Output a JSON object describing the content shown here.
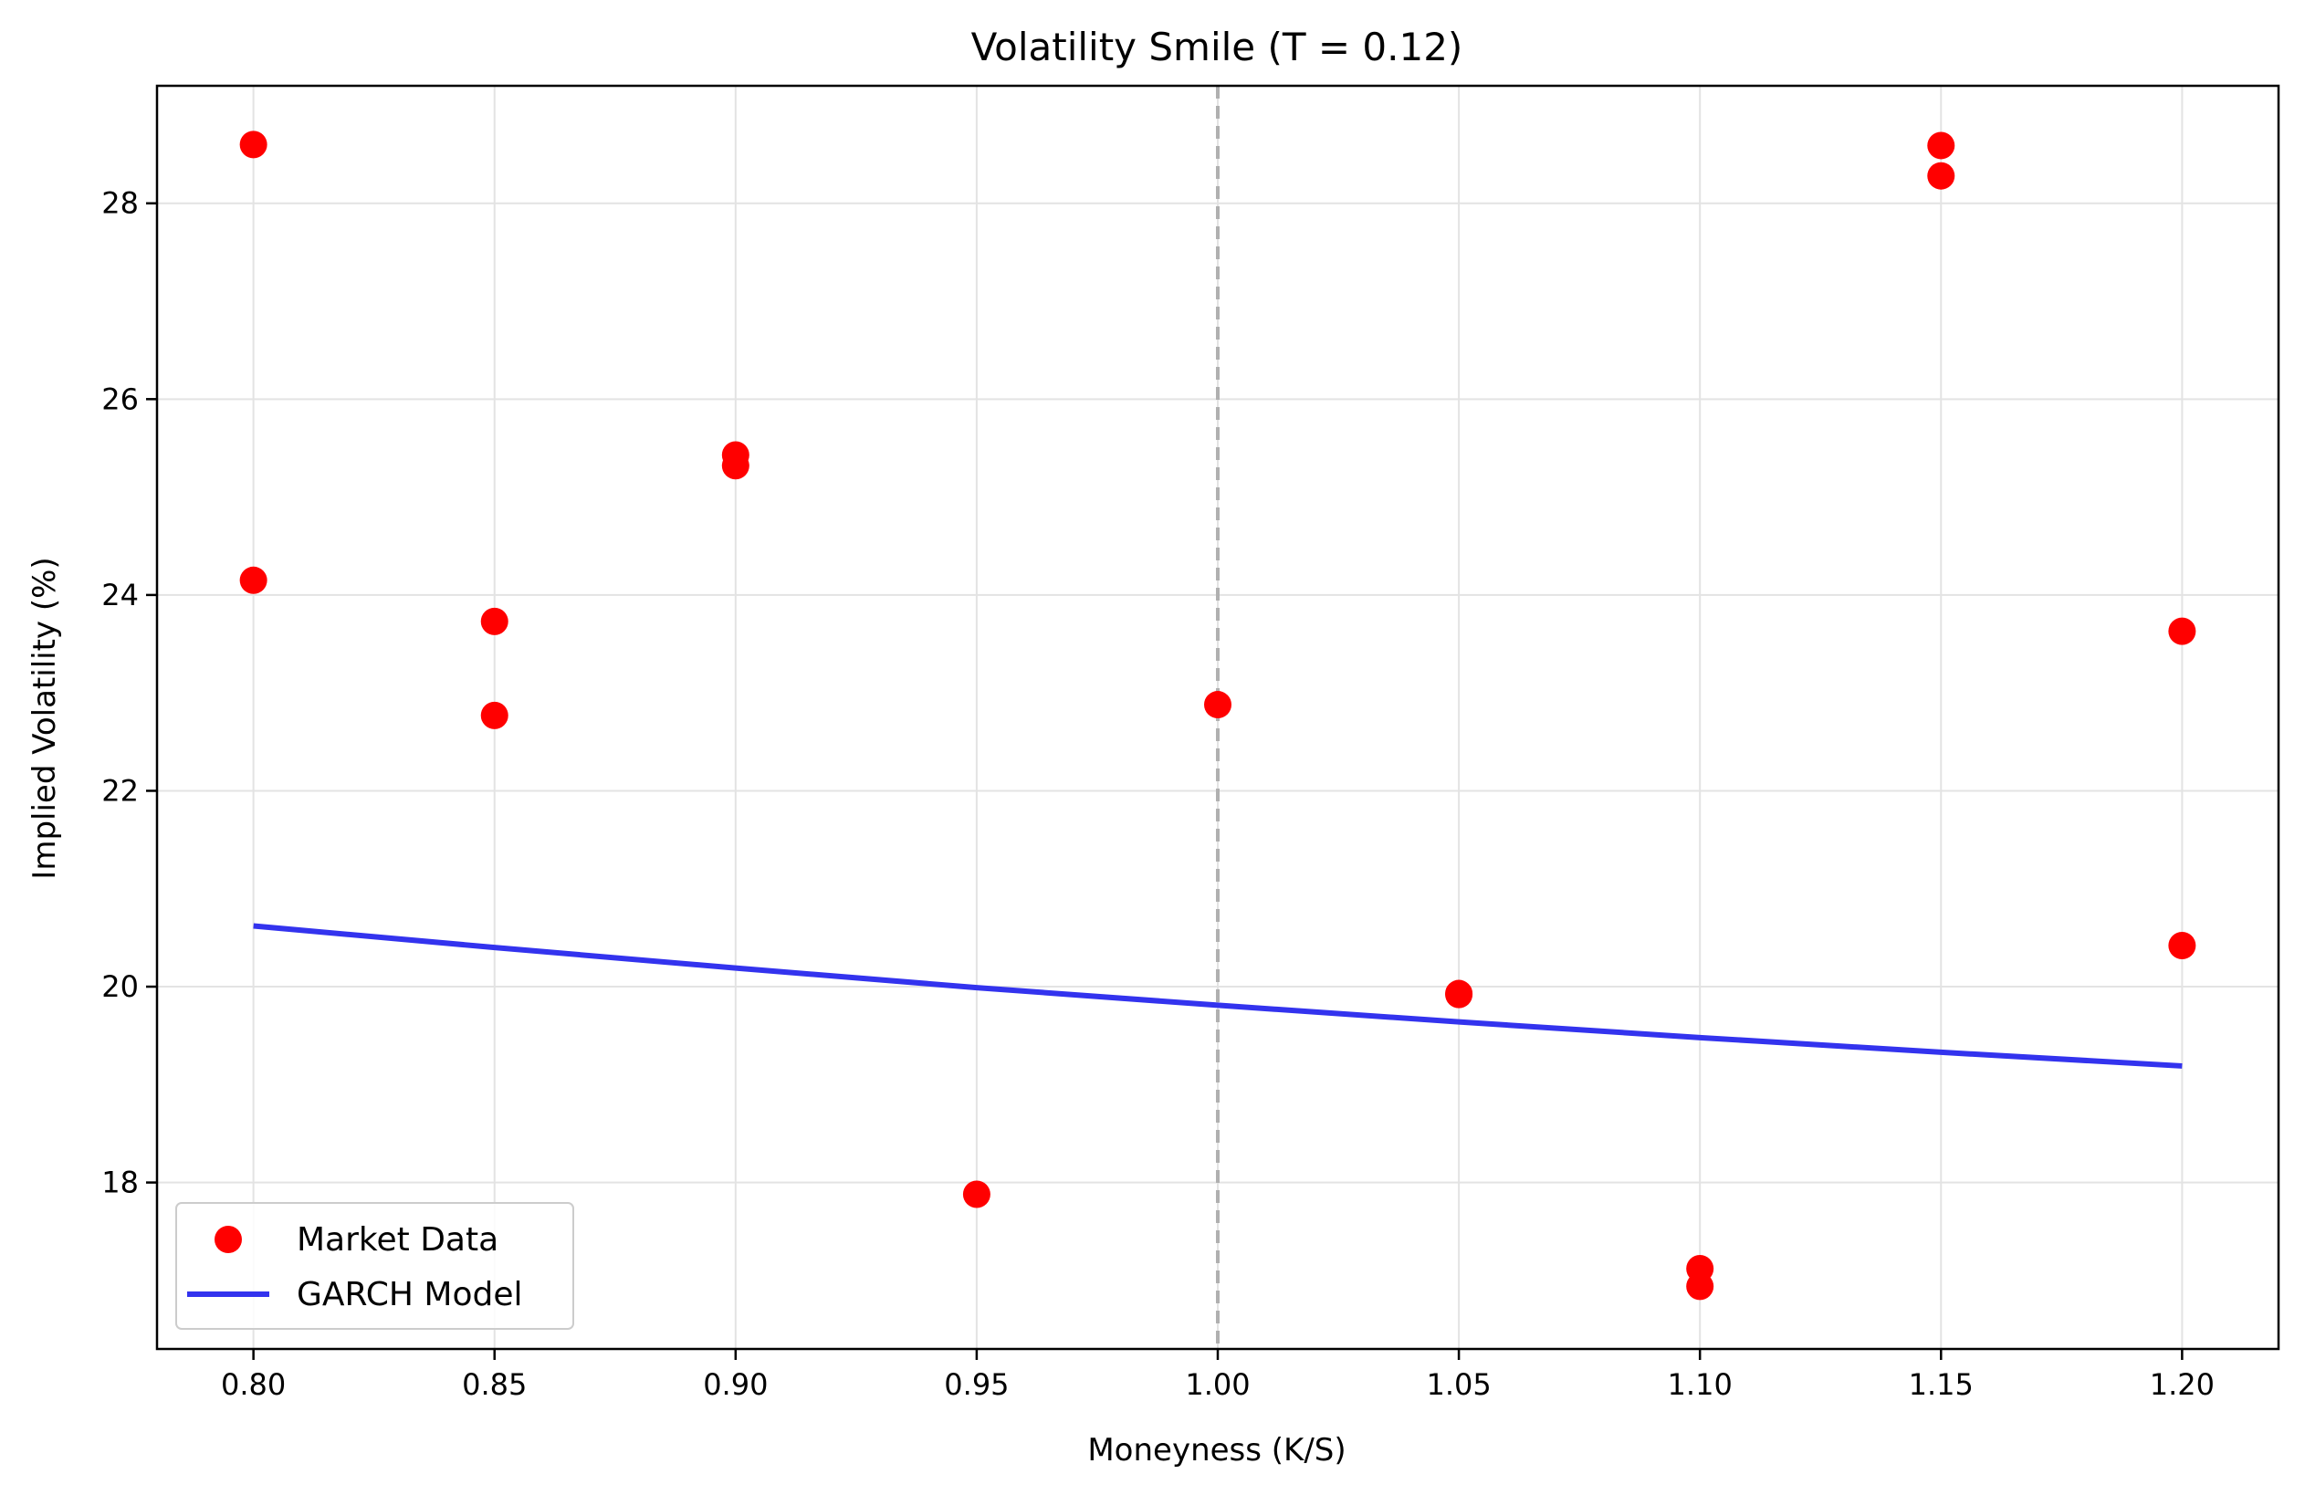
{
  "chart_data": {
    "type": "scatter",
    "title": "Volatility Smile (T = 0.12)",
    "xlabel": "Moneyness (K/S)",
    "ylabel": "Implied Volatility (%)",
    "xlim": [
      0.78,
      1.22
    ],
    "ylim": [
      16.3,
      29.2
    ],
    "x_ticks": [
      0.8,
      0.85,
      0.9,
      0.95,
      1.0,
      1.05,
      1.1,
      1.15,
      1.2
    ],
    "x_tick_labels": [
      "0.80",
      "0.85",
      "0.90",
      "0.95",
      "1.00",
      "1.05",
      "1.10",
      "1.15",
      "1.20"
    ],
    "y_ticks": [
      18,
      20,
      22,
      24,
      26,
      28
    ],
    "y_tick_labels": [
      "18",
      "20",
      "22",
      "24",
      "26",
      "28"
    ],
    "grid": true,
    "reference_line": {
      "x": 1.0,
      "style": "dashed",
      "color": "#b0b0b0"
    },
    "legend": {
      "placement": "lower-left"
    },
    "series": [
      {
        "name": "Market Data",
        "kind": "scatter",
        "color": "#ff0000",
        "points": [
          {
            "x": 0.8,
            "y": 28.6
          },
          {
            "x": 0.8,
            "y": 24.15
          },
          {
            "x": 0.85,
            "y": 23.73
          },
          {
            "x": 0.85,
            "y": 22.77
          },
          {
            "x": 0.9,
            "y": 25.43
          },
          {
            "x": 0.9,
            "y": 25.32
          },
          {
            "x": 0.95,
            "y": 17.88
          },
          {
            "x": 1.0,
            "y": 22.88
          },
          {
            "x": 1.05,
            "y": 19.93
          },
          {
            "x": 1.05,
            "y": 19.92
          },
          {
            "x": 1.1,
            "y": 17.12
          },
          {
            "x": 1.1,
            "y": 16.94
          },
          {
            "x": 1.15,
            "y": 28.59
          },
          {
            "x": 1.15,
            "y": 28.28
          },
          {
            "x": 1.2,
            "y": 23.63
          },
          {
            "x": 1.2,
            "y": 20.42
          }
        ]
      },
      {
        "name": "GARCH Model",
        "kind": "line",
        "color": "#3333ee",
        "points": [
          {
            "x": 0.8,
            "y": 20.62
          },
          {
            "x": 0.85,
            "y": 20.4
          },
          {
            "x": 0.9,
            "y": 20.19
          },
          {
            "x": 0.95,
            "y": 19.99
          },
          {
            "x": 1.0,
            "y": 19.81
          },
          {
            "x": 1.05,
            "y": 19.64
          },
          {
            "x": 1.1,
            "y": 19.48
          },
          {
            "x": 1.15,
            "y": 19.33
          },
          {
            "x": 1.2,
            "y": 19.19
          }
        ]
      }
    ]
  }
}
